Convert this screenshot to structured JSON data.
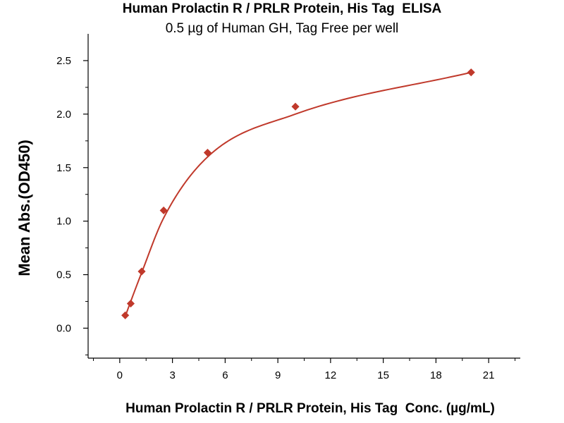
{
  "chart_data": {
    "type": "scatter",
    "title": "Human Prolactin R / PRLR Protein, His Tag  ELISA",
    "subtitle": "0.5 µg of Human GH, Tag Free per well",
    "xlabel": "Human Prolactin R / PRLR Protein, His Tag  Conc. (µg/mL)",
    "ylabel": "Mean Abs.(OD450)",
    "xlim": [
      -1.8,
      22.8
    ],
    "ylim": [
      -0.28,
      2.75
    ],
    "xticks": [
      0,
      3,
      6,
      9,
      12,
      15,
      18,
      21
    ],
    "xtick_labels": [
      "0",
      "3",
      "6",
      "9",
      "12",
      "15",
      "18",
      "21"
    ],
    "yticks": [
      0.0,
      0.5,
      1.0,
      1.5,
      2.0,
      2.5
    ],
    "ytick_labels": [
      "0.0",
      "0.5",
      "1.0",
      "1.5",
      "2.0",
      "2.5"
    ],
    "grid": false,
    "series": [
      {
        "marker": "diamond",
        "color": "#c0392b",
        "x": [
          0.313,
          0.625,
          1.25,
          2.5,
          5,
          10,
          20
        ],
        "y": [
          0.12,
          0.23,
          0.53,
          1.1,
          1.64,
          2.07,
          2.39
        ]
      }
    ],
    "fit_curve": {
      "color": "#c0392b",
      "x": [
        0.313,
        0.625,
        1.25,
        2.5,
        5,
        10,
        20
      ],
      "y": [
        0.11,
        0.25,
        0.52,
        1.03,
        1.6,
        2.0,
        2.39
      ]
    }
  }
}
